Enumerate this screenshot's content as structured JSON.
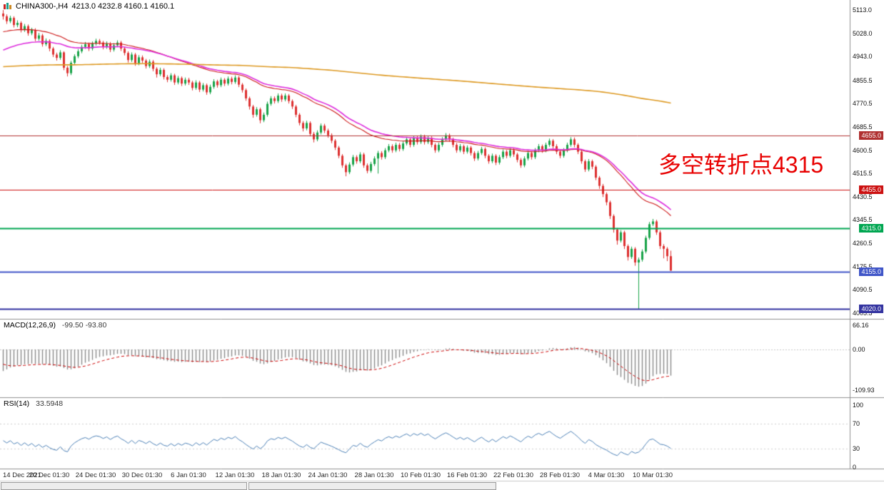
{
  "title_bar": {
    "symbol": "CHINA300-,H4",
    "ohlc": "4213.0 4232.8 4160.1 4160.1",
    "open": "4213.0",
    "high": "4232.8",
    "low": "4160.1",
    "close": "4160.1"
  },
  "annotation": {
    "text": "多空转折点4315",
    "color": "#e80000"
  },
  "panels": {
    "macd": {
      "name": "MACD(12,26,9)",
      "values_text": "-99.50 -93.80",
      "scale": [
        {
          "label": "66.16",
          "value": 66.16
        },
        {
          "label": "0.00",
          "value": 0
        },
        {
          "label": "-109.93",
          "value": -109.93
        }
      ]
    },
    "rsi": {
      "name": "RSI(14)",
      "value_text": "33.5948",
      "scale": [
        {
          "label": "100",
          "value": 100
        },
        {
          "label": "70",
          "value": 70
        },
        {
          "label": "30",
          "value": 30
        },
        {
          "label": "0",
          "value": 0
        }
      ],
      "levels": [
        70,
        30
      ]
    }
  },
  "price_scale": {
    "ticks": [
      {
        "label": "5113.0",
        "value": 5113.0
      },
      {
        "label": "5028.0",
        "value": 5028.0
      },
      {
        "label": "4943.0",
        "value": 4943.0
      },
      {
        "label": "4855.5",
        "value": 4855.5
      },
      {
        "label": "4770.5",
        "value": 4770.5
      },
      {
        "label": "4685.5",
        "value": 4685.5
      },
      {
        "label": "4600.5",
        "value": 4600.5
      },
      {
        "label": "4515.5",
        "value": 4515.5
      },
      {
        "label": "4430.5",
        "value": 4430.5
      },
      {
        "label": "4345.5",
        "value": 4345.5
      },
      {
        "label": "4260.5",
        "value": 4260.5
      },
      {
        "label": "4175.5",
        "value": 4175.5
      },
      {
        "label": "4090.5",
        "value": 4090.5
      },
      {
        "label": "4005.5",
        "value": 4005.5
      }
    ]
  },
  "levels": [
    {
      "label": "4655.0",
      "value": 4655,
      "color": "#b03030",
      "thick": 1
    },
    {
      "label": "4455.0",
      "value": 4455,
      "color": "#cc1111",
      "thick": 1
    },
    {
      "label": "4315.0",
      "value": 4315,
      "color": "#00a651",
      "thick": 2
    },
    {
      "label": "4155.0",
      "value": 4155,
      "color": "#4056c8",
      "thick": 2
    },
    {
      "label": "4020.0",
      "value": 4020,
      "color": "#3333a0",
      "thick": 2
    }
  ],
  "x_axis": {
    "labels": [
      {
        "i": 0,
        "text": "14 Dec 2021"
      },
      {
        "i": 13,
        "text": "20 Dec 01:30"
      },
      {
        "i": 26,
        "text": "24 Dec 01:30"
      },
      {
        "i": 39,
        "text": "30 Dec 01:30"
      },
      {
        "i": 52,
        "text": "6 Jan 01:30"
      },
      {
        "i": 65,
        "text": "12 Jan 01:30"
      },
      {
        "i": 78,
        "text": "18 Jan 01:30"
      },
      {
        "i": 91,
        "text": "24 Jan 01:30"
      },
      {
        "i": 104,
        "text": "28 Jan 01:30"
      },
      {
        "i": 117,
        "text": "10 Feb 01:30"
      },
      {
        "i": 130,
        "text": "16 Feb 01:30"
      },
      {
        "i": 143,
        "text": "22 Feb 01:30"
      },
      {
        "i": 156,
        "text": "28 Feb 01:30"
      },
      {
        "i": 169,
        "text": "4 Mar 01:30"
      },
      {
        "i": 182,
        "text": "10 Mar 01:30"
      }
    ]
  },
  "chart_data": {
    "type": "candlestick",
    "symbol": "CHINA300-",
    "timeframe": "H4",
    "price_axis": {
      "min": 4005.5,
      "max": 5113.0
    },
    "up_color": "#18a348",
    "down_color": "#dd3030",
    "ohlc": [
      [
        5100,
        5113,
        5078,
        5090
      ],
      [
        5090,
        5097,
        5062,
        5072
      ],
      [
        5072,
        5092,
        5065,
        5084
      ],
      [
        5084,
        5090,
        5049,
        5058
      ],
      [
        5058,
        5075,
        5050,
        5066
      ],
      [
        5066,
        5072,
        5031,
        5040
      ],
      [
        5040,
        5062,
        5033,
        5054
      ],
      [
        5054,
        5060,
        5019,
        5028
      ],
      [
        5028,
        5048,
        5021,
        5040
      ],
      [
        5040,
        5046,
        4999,
        5008
      ],
      [
        5008,
        5029,
        5001,
        5020
      ],
      [
        5020,
        5026,
        4979,
        4988
      ],
      [
        4988,
        5009,
        4981,
        5000
      ],
      [
        5000,
        5006,
        4962,
        4972
      ],
      [
        4972,
        4978,
        4941,
        4950
      ],
      [
        4950,
        4957,
        4928,
        4938
      ],
      [
        4938,
        4966,
        4931,
        4958
      ],
      [
        4958,
        4962,
        4893,
        4902
      ],
      [
        4902,
        4908,
        4870,
        4882
      ],
      [
        4882,
        4927,
        4875,
        4920
      ],
      [
        4920,
        4951,
        4913,
        4944
      ],
      [
        4944,
        4970,
        4937,
        4962
      ],
      [
        4962,
        4986,
        4955,
        4978
      ],
      [
        4978,
        4996,
        4971,
        4988
      ],
      [
        4988,
        4994,
        4963,
        4972
      ],
      [
        4972,
        4998,
        4965,
        4990
      ],
      [
        4990,
        5008,
        4983,
        5000
      ],
      [
        5000,
        5007,
        4986,
        4994
      ],
      [
        4994,
        5000,
        4969,
        4978
      ],
      [
        4978,
        4998,
        4971,
        4990
      ],
      [
        4990,
        4996,
        4959,
        4968
      ],
      [
        4968,
        4992,
        4961,
        4984
      ],
      [
        4984,
        5002,
        4977,
        4994
      ],
      [
        4994,
        5000,
        4963,
        4972
      ],
      [
        4972,
        4978,
        4947,
        4956
      ],
      [
        4956,
        4962,
        4921,
        4930
      ],
      [
        4930,
        4958,
        4923,
        4950
      ],
      [
        4950,
        4956,
        4909,
        4918
      ],
      [
        4918,
        4948,
        4911,
        4940
      ],
      [
        4940,
        4947,
        4919,
        4928
      ],
      [
        4928,
        4934,
        4899,
        4908
      ],
      [
        4908,
        4932,
        4901,
        4924
      ],
      [
        4924,
        4930,
        4889,
        4898
      ],
      [
        4898,
        4904,
        4866,
        4878
      ],
      [
        4878,
        4902,
        4871,
        4894
      ],
      [
        4894,
        4900,
        4859,
        4868
      ],
      [
        4868,
        4875,
        4849,
        4858
      ],
      [
        4858,
        4882,
        4851,
        4874
      ],
      [
        4874,
        4880,
        4839,
        4848
      ],
      [
        4848,
        4872,
        4841,
        4864
      ],
      [
        4864,
        4870,
        4835,
        4844
      ],
      [
        4844,
        4866,
        4837,
        4858
      ],
      [
        4858,
        4865,
        4839,
        4848
      ],
      [
        4848,
        4854,
        4819,
        4828
      ],
      [
        4828,
        4856,
        4821,
        4848
      ],
      [
        4848,
        4854,
        4813,
        4822
      ],
      [
        4822,
        4846,
        4815,
        4838
      ],
      [
        4838,
        4844,
        4803,
        4812
      ],
      [
        4812,
        4840,
        4805,
        4832
      ],
      [
        4832,
        4860,
        4825,
        4852
      ],
      [
        4852,
        4858,
        4829,
        4838
      ],
      [
        4838,
        4866,
        4831,
        4858
      ],
      [
        4858,
        4864,
        4835,
        4844
      ],
      [
        4844,
        4870,
        4837,
        4862
      ],
      [
        4862,
        4869,
        4841,
        4850
      ],
      [
        4850,
        4874,
        4843,
        4866
      ],
      [
        4866,
        4872,
        4831,
        4840
      ],
      [
        4840,
        4846,
        4811,
        4820
      ],
      [
        4820,
        4826,
        4781,
        4790
      ],
      [
        4790,
        4796,
        4749,
        4760
      ],
      [
        4760,
        4766,
        4719,
        4730
      ],
      [
        4730,
        4758,
        4723,
        4750
      ],
      [
        4750,
        4756,
        4699,
        4710
      ],
      [
        4710,
        4738,
        4703,
        4730
      ],
      [
        4730,
        4778,
        4723,
        4770
      ],
      [
        4770,
        4798,
        4763,
        4790
      ],
      [
        4790,
        4797,
        4771,
        4780
      ],
      [
        4780,
        4808,
        4773,
        4800
      ],
      [
        4800,
        4807,
        4777,
        4786
      ],
      [
        4786,
        4808,
        4779,
        4800
      ],
      [
        4800,
        4806,
        4771,
        4780
      ],
      [
        4780,
        4786,
        4751,
        4760
      ],
      [
        4760,
        4766,
        4721,
        4730
      ],
      [
        4730,
        4736,
        4691,
        4700
      ],
      [
        4700,
        4707,
        4669,
        4680
      ],
      [
        4680,
        4708,
        4673,
        4700
      ],
      [
        4700,
        4706,
        4651,
        4660
      ],
      [
        4660,
        4667,
        4629,
        4640
      ],
      [
        4640,
        4673,
        4633,
        4665
      ],
      [
        4665,
        4698,
        4658,
        4690
      ],
      [
        4690,
        4697,
        4663,
        4672
      ],
      [
        4672,
        4679,
        4646,
        4655
      ],
      [
        4655,
        4662,
        4626,
        4635
      ],
      [
        4635,
        4641,
        4601,
        4610
      ],
      [
        4610,
        4616,
        4571,
        4580
      ],
      [
        4580,
        4586,
        4536,
        4545
      ],
      [
        4545,
        4551,
        4505,
        4520
      ],
      [
        4520,
        4556,
        4513,
        4548
      ],
      [
        4548,
        4583,
        4541,
        4575
      ],
      [
        4575,
        4582,
        4551,
        4560
      ],
      [
        4560,
        4593,
        4553,
        4585
      ],
      [
        4585,
        4591,
        4536,
        4545
      ],
      [
        4545,
        4552,
        4516,
        4525
      ],
      [
        4525,
        4558,
        4518,
        4550
      ],
      [
        4550,
        4578,
        4543,
        4570
      ],
      [
        4570,
        4598,
        4515,
        4590
      ],
      [
        4590,
        4597,
        4566,
        4575
      ],
      [
        4575,
        4608,
        4568,
        4600
      ],
      [
        4600,
        4623,
        4593,
        4615
      ],
      [
        4615,
        4622,
        4591,
        4600
      ],
      [
        4600,
        4628,
        4593,
        4620
      ],
      [
        4620,
        4627,
        4596,
        4605
      ],
      [
        4605,
        4633,
        4598,
        4625
      ],
      [
        4625,
        4648,
        4618,
        4640
      ],
      [
        4640,
        4646,
        4611,
        4620
      ],
      [
        4620,
        4653,
        4613,
        4645
      ],
      [
        4645,
        4652,
        4621,
        4630
      ],
      [
        4630,
        4658,
        4623,
        4650
      ],
      [
        4650,
        4657,
        4621,
        4630
      ],
      [
        4630,
        4653,
        4623,
        4645
      ],
      [
        4645,
        4651,
        4611,
        4620
      ],
      [
        4620,
        4626,
        4591,
        4600
      ],
      [
        4600,
        4628,
        4593,
        4620
      ],
      [
        4620,
        4648,
        4613,
        4640
      ],
      [
        4640,
        4663,
        4633,
        4655
      ],
      [
        4655,
        4661,
        4631,
        4640
      ],
      [
        4640,
        4646,
        4611,
        4620
      ],
      [
        4620,
        4627,
        4591,
        4600
      ],
      [
        4600,
        4623,
        4593,
        4615
      ],
      [
        4615,
        4621,
        4586,
        4595
      ],
      [
        4595,
        4618,
        4588,
        4610
      ],
      [
        4610,
        4616,
        4581,
        4590
      ],
      [
        4590,
        4597,
        4561,
        4570
      ],
      [
        4570,
        4598,
        4563,
        4590
      ],
      [
        4590,
        4613,
        4583,
        4605
      ],
      [
        4605,
        4611,
        4571,
        4580
      ],
      [
        4580,
        4586,
        4551,
        4560
      ],
      [
        4560,
        4588,
        4553,
        4580
      ],
      [
        4580,
        4586,
        4546,
        4555
      ],
      [
        4555,
        4583,
        4548,
        4575
      ],
      [
        4575,
        4603,
        4568,
        4595
      ],
      [
        4595,
        4601,
        4571,
        4580
      ],
      [
        4580,
        4608,
        4573,
        4600
      ],
      [
        4600,
        4607,
        4576,
        4585
      ],
      [
        4585,
        4591,
        4556,
        4565
      ],
      [
        4565,
        4572,
        4536,
        4545
      ],
      [
        4545,
        4578,
        4538,
        4570
      ],
      [
        4570,
        4598,
        4563,
        4590
      ],
      [
        4590,
        4596,
        4566,
        4575
      ],
      [
        4575,
        4608,
        4568,
        4600
      ],
      [
        4600,
        4623,
        4593,
        4615
      ],
      [
        4615,
        4621,
        4591,
        4600
      ],
      [
        4600,
        4628,
        4593,
        4620
      ],
      [
        4620,
        4643,
        4613,
        4635
      ],
      [
        4635,
        4641,
        4606,
        4615
      ],
      [
        4615,
        4622,
        4586,
        4595
      ],
      [
        4595,
        4601,
        4571,
        4580
      ],
      [
        4580,
        4608,
        4573,
        4600
      ],
      [
        4600,
        4628,
        4593,
        4620
      ],
      [
        4620,
        4648,
        4613,
        4640
      ],
      [
        4640,
        4647,
        4611,
        4620
      ],
      [
        4620,
        4626,
        4586,
        4595
      ],
      [
        4595,
        4601,
        4551,
        4560
      ],
      [
        4560,
        4566,
        4521,
        4530
      ],
      [
        4530,
        4568,
        4523,
        4560
      ],
      [
        4560,
        4566,
        4531,
        4540
      ],
      [
        4540,
        4546,
        4491,
        4500
      ],
      [
        4500,
        4506,
        4459,
        4470
      ],
      [
        4470,
        4477,
        4429,
        4440
      ],
      [
        4440,
        4446,
        4399,
        4410
      ],
      [
        4410,
        4416,
        4349,
        4360
      ],
      [
        4360,
        4366,
        4299,
        4310
      ],
      [
        4310,
        4316,
        4255,
        4270
      ],
      [
        4270,
        4308,
        4263,
        4300
      ],
      [
        4300,
        4306,
        4239,
        4250
      ],
      [
        4250,
        4256,
        4197,
        4210
      ],
      [
        4210,
        4248,
        4203,
        4240
      ],
      [
        4240,
        4246,
        4178,
        4190
      ],
      [
        4190,
        4208,
        4020,
        4200
      ],
      [
        4200,
        4238,
        4193,
        4230
      ],
      [
        4230,
        4288,
        4223,
        4280
      ],
      [
        4280,
        4338,
        4273,
        4330
      ],
      [
        4330,
        4349,
        4323,
        4340
      ],
      [
        4340,
        4346,
        4291,
        4300
      ],
      [
        4300,
        4307,
        4239,
        4250
      ],
      [
        4250,
        4257,
        4205,
        4240
      ],
      [
        4240,
        4246,
        4195,
        4213
      ],
      [
        4213,
        4233,
        4160,
        4160
      ]
    ],
    "moving_averages": [
      {
        "name": "ema-fast-red",
        "period": 34,
        "seed": 5030,
        "color": "#cc1515",
        "width": 1.1
      },
      {
        "name": "ema-mid-magenta",
        "period": 40,
        "seed": 4960,
        "color": "#dd2edd",
        "width": 1.6
      },
      {
        "name": "ema-slow-orange",
        "period": 500,
        "seed": 4905,
        "color": "#dd9922",
        "width": 1.6
      }
    ],
    "macd": {
      "fast": 12,
      "slow": 26,
      "signal": 9,
      "current": -99.5,
      "signal_current": -93.8,
      "axis": {
        "max": 66.16,
        "min": -109.93
      }
    },
    "rsi": {
      "period": 14,
      "current": 33.5948,
      "axis": {
        "max": 100,
        "min": 0
      }
    }
  }
}
